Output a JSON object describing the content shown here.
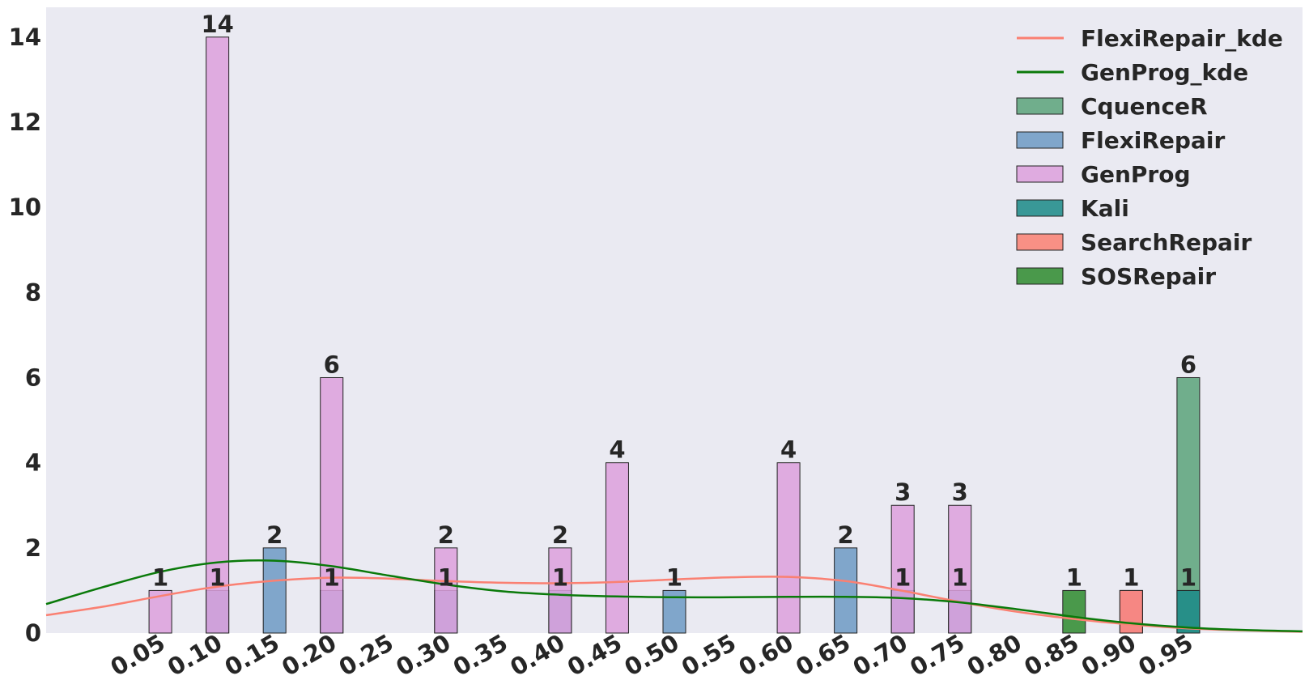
{
  "chart_data": {
    "type": "bar",
    "title": "",
    "xlabel": "",
    "ylabel": "",
    "xlim": [
      0.0,
      1.1
    ],
    "ylim": [
      0,
      14.7
    ],
    "x_ticks": [
      "0.05",
      "0.10",
      "0.15",
      "0.20",
      "0.25",
      "0.30",
      "0.35",
      "0.40",
      "0.45",
      "0.50",
      "0.55",
      "0.60",
      "0.65",
      "0.70",
      "0.75",
      "0.80",
      "0.85",
      "0.90",
      "0.95"
    ],
    "y_ticks": [
      "0",
      "2",
      "4",
      "6",
      "8",
      "10",
      "12",
      "14"
    ],
    "grid": false,
    "legend_position": "top-right",
    "series": [
      {
        "name": "CquenceR",
        "color": "#5aa37a",
        "points": [
          {
            "x": 1.0,
            "y": 6
          }
        ]
      },
      {
        "name": "FlexiRepair",
        "color": "#6d9ac4",
        "points": [
          {
            "x": 0.15,
            "y": 1
          },
          {
            "x": 0.2,
            "y": 2
          },
          {
            "x": 0.25,
            "y": 1
          },
          {
            "x": 0.35,
            "y": 1
          },
          {
            "x": 0.45,
            "y": 1
          },
          {
            "x": 0.55,
            "y": 1
          },
          {
            "x": 0.7,
            "y": 2
          },
          {
            "x": 0.75,
            "y": 1
          },
          {
            "x": 0.8,
            "y": 1
          }
        ]
      },
      {
        "name": "GenProg",
        "color": "#dda0dd",
        "points": [
          {
            "x": 0.1,
            "y": 1
          },
          {
            "x": 0.15,
            "y": 14
          },
          {
            "x": 0.25,
            "y": 6
          },
          {
            "x": 0.35,
            "y": 2
          },
          {
            "x": 0.45,
            "y": 2
          },
          {
            "x": 0.5,
            "y": 4
          },
          {
            "x": 0.65,
            "y": 4
          },
          {
            "x": 0.75,
            "y": 3
          },
          {
            "x": 0.8,
            "y": 3
          },
          {
            "x": 0.95,
            "y": 1
          }
        ]
      },
      {
        "name": "Kali",
        "color": "#1a8a87",
        "points": [
          {
            "x": 1.0,
            "y": 1
          }
        ]
      },
      {
        "name": "SearchRepair",
        "color": "#fa8072",
        "points": [
          {
            "x": 0.95,
            "y": 1
          }
        ]
      },
      {
        "name": "SOSRepair",
        "color": "#2e8b2e",
        "points": [
          {
            "x": 0.9,
            "y": 1
          }
        ]
      }
    ],
    "kde": [
      {
        "name": "FlexiRepair_kde",
        "color": "#fa8072",
        "x": [
          0.0,
          0.05,
          0.1,
          0.15,
          0.2,
          0.25,
          0.3,
          0.35,
          0.4,
          0.45,
          0.5,
          0.55,
          0.6,
          0.65,
          0.7,
          0.75,
          0.8,
          0.85,
          0.9,
          0.95,
          1.0,
          1.05,
          1.1
        ],
        "y": [
          0.42,
          0.62,
          0.87,
          1.09,
          1.23,
          1.3,
          1.28,
          1.22,
          1.18,
          1.17,
          1.2,
          1.26,
          1.31,
          1.32,
          1.22,
          0.99,
          0.73,
          0.5,
          0.33,
          0.2,
          0.11,
          0.06,
          0.03
        ]
      },
      {
        "name": "GenProg_kde",
        "color": "#0a7a0a",
        "x": [
          0.0,
          0.05,
          0.1,
          0.15,
          0.2,
          0.25,
          0.3,
          0.35,
          0.4,
          0.45,
          0.5,
          0.55,
          0.6,
          0.65,
          0.7,
          0.75,
          0.8,
          0.85,
          0.9,
          0.95,
          1.0,
          1.05,
          1.1
        ],
        "y": [
          0.68,
          1.08,
          1.44,
          1.66,
          1.7,
          1.57,
          1.35,
          1.14,
          0.98,
          0.9,
          0.86,
          0.84,
          0.84,
          0.85,
          0.85,
          0.82,
          0.72,
          0.56,
          0.38,
          0.23,
          0.13,
          0.07,
          0.04
        ]
      }
    ]
  }
}
